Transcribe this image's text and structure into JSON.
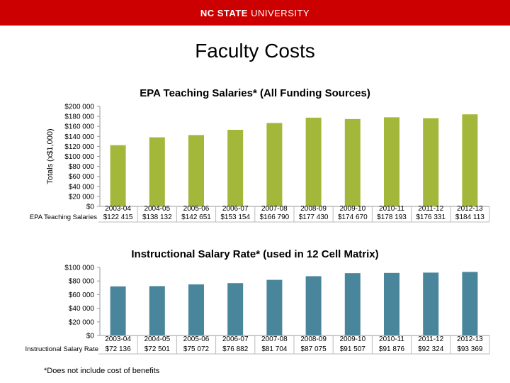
{
  "header": {
    "brand_strong": "NC STATE",
    "brand_light": " UNIVERSITY"
  },
  "page_title": "Faculty Costs",
  "footnote": "*Does not include cost of benefits",
  "colors": {
    "banner": "#cc0000",
    "series1": "#a3b73a",
    "series2": "#4a869b",
    "grid": "#999999"
  },
  "chart_data": [
    {
      "type": "bar",
      "title": "EPA Teaching Salaries* (All Funding Sources)",
      "ylabel": "Totals (x$1,000)",
      "xlabel": "",
      "categories": [
        "2003-04",
        "2004-05",
        "2005-06",
        "2006-07",
        "2007-08",
        "2008-09",
        "2009-10",
        "2010-11",
        "2011-12",
        "2012-13"
      ],
      "series": [
        {
          "name": "EPA Teaching Salaries",
          "values": [
            122415,
            138132,
            142651,
            153154,
            166790,
            177430,
            174670,
            178193,
            176331,
            184113
          ],
          "labels": [
            "$122 415",
            "$138 132",
            "$142 651",
            "$153 154",
            "$166 790",
            "$177 430",
            "$174 670",
            "$178 193",
            "$176 331",
            "$184 113"
          ]
        }
      ],
      "ylim": [
        0,
        200000
      ],
      "yticks": [
        "$0",
        "$20 000",
        "$40 000",
        "$60 000",
        "$80 000",
        "$100 000",
        "$120 000",
        "$140 000",
        "$160 000",
        "$180 000",
        "$200 000"
      ],
      "grid": false,
      "legend": "none"
    },
    {
      "type": "bar",
      "title": "Instructional Salary Rate* (used in 12 Cell Matrix)",
      "ylabel": "",
      "xlabel": "",
      "categories": [
        "2003-04",
        "2004-05",
        "2005-06",
        "2006-07",
        "2007-08",
        "2008-09",
        "2009-10",
        "2010-11",
        "2011-12",
        "2012-13"
      ],
      "series": [
        {
          "name": "Instructional Salary Rate",
          "values": [
            72136,
            72501,
            75072,
            76882,
            81704,
            87075,
            91507,
            91876,
            92324,
            93369
          ],
          "labels": [
            "$72 136",
            "$72 501",
            "$75 072",
            "$76 882",
            "$81 704",
            "$87 075",
            "$91 507",
            "$91 876",
            "$92 324",
            "$93 369"
          ]
        }
      ],
      "ylim": [
        0,
        100000
      ],
      "yticks": [
        "$0",
        "$20 000",
        "$40 000",
        "$60 000",
        "$80 000",
        "$100 000"
      ],
      "grid": false,
      "legend": "none"
    }
  ]
}
